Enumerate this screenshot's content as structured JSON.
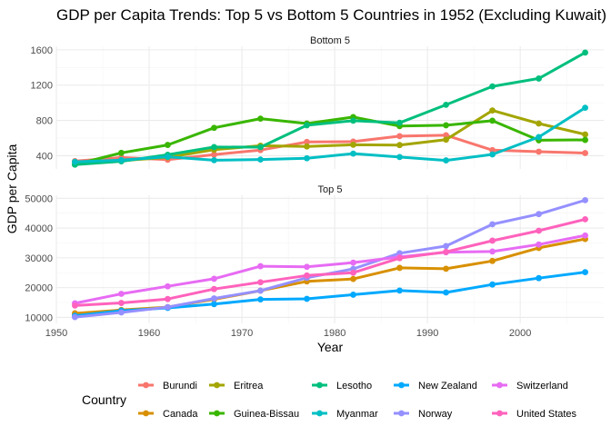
{
  "title": "GDP per Capita Trends: Top 5 vs Bottom 5 Countries in 1952 (Excluding Kuwait)",
  "xlabel": "Year",
  "ylabel": "GDP per Capita",
  "legend_title": "Country",
  "chart_data": [
    {
      "type": "line",
      "panel": "Bottom 5",
      "x": [
        1952,
        1957,
        1962,
        1967,
        1972,
        1977,
        1982,
        1987,
        1992,
        1997,
        2002,
        2007
      ],
      "xlim": [
        1950,
        2009
      ],
      "xticks": [
        1950,
        1960,
        1970,
        1980,
        1990,
        2000
      ],
      "ylim": [
        250,
        1640
      ],
      "yticks": [
        400,
        800,
        1200,
        1600
      ],
      "grid": true,
      "series": [
        {
          "name": "Burundi",
          "color": "#F8766D",
          "values": [
            339,
            380,
            355,
            413,
            464,
            556,
            560,
            622,
            632,
            463,
            446,
            430
          ]
        },
        {
          "name": "Eritrea",
          "color": "#A3A500",
          "values": [
            329,
            344,
            381,
            468,
            514,
            505,
            524,
            521,
            582,
            913,
            765,
            641
          ]
        },
        {
          "name": "Guinea-Bissau",
          "color": "#39B600",
          "values": [
            300,
            432,
            522,
            716,
            820,
            765,
            838,
            736,
            745,
            797,
            575,
            579
          ]
        },
        {
          "name": "Lesotho",
          "color": "#00BF7D",
          "values": [
            299,
            336,
            411,
            498,
            497,
            745,
            797,
            773,
            977,
            1186,
            1275,
            1569
          ]
        },
        {
          "name": "Myanmar",
          "color": "#00BFC4",
          "values": [
            331,
            350,
            388,
            349,
            357,
            371,
            424,
            385,
            347,
            415,
            611,
            944
          ]
        }
      ]
    },
    {
      "type": "line",
      "panel": "Top 5",
      "x": [
        1952,
        1957,
        1962,
        1967,
        1972,
        1977,
        1982,
        1987,
        1992,
        1997,
        2002,
        2007
      ],
      "xlim": [
        1950,
        2009
      ],
      "xticks": [
        1950,
        1960,
        1970,
        1980,
        1990,
        2000
      ],
      "ylim": [
        8000,
        51000
      ],
      "yticks": [
        10000,
        20000,
        30000,
        40000,
        50000
      ],
      "grid": true,
      "series": [
        {
          "name": "Canada",
          "color": "#D89000",
          "values": [
            11367,
            12490,
            13462,
            16077,
            18971,
            22091,
            22899,
            26627,
            26343,
            28955,
            33329,
            36319
          ]
        },
        {
          "name": "New Zealand",
          "color": "#00A9FF",
          "values": [
            10557,
            12247,
            13176,
            14464,
            16047,
            16234,
            17632,
            19007,
            18363,
            21050,
            23190,
            25185
          ]
        },
        {
          "name": "Norway",
          "color": "#9590FF",
          "values": [
            10095,
            11654,
            13450,
            16362,
            18965,
            23311,
            26298,
            31541,
            33965,
            41283,
            44684,
            49357
          ]
        },
        {
          "name": "Switzerland",
          "color": "#E76BF3",
          "values": [
            14734,
            17909,
            20431,
            22966,
            27195,
            26982,
            28398,
            30282,
            31872,
            32135,
            34481,
            37506
          ]
        },
        {
          "name": "United States",
          "color": "#FF62BC",
          "values": [
            13990,
            14847,
            16173,
            19530,
            21806,
            24073,
            25010,
            29884,
            32004,
            35767,
            39097,
            42952
          ]
        }
      ]
    }
  ]
}
